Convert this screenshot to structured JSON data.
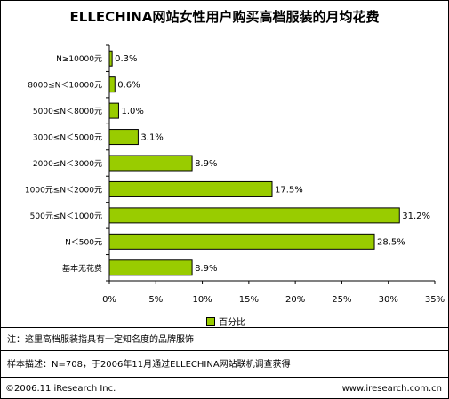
{
  "chart_data": {
    "type": "bar",
    "orientation": "horizontal",
    "title": "ELLECHINA网站女性用户购买高档服装的月均花费",
    "categories": [
      "N≥10000元",
      "8000≤N＜10000元",
      "5000≤N＜8000元",
      "3000≤N＜5000元",
      "2000≤N＜3000元",
      "1000元≤N＜2000元",
      "500元≤N＜1000元",
      "N＜500元",
      "基本无花费"
    ],
    "series": [
      {
        "name": "百分比",
        "values": [
          0.3,
          0.6,
          1.0,
          3.1,
          8.9,
          17.5,
          31.2,
          28.5,
          8.9
        ]
      }
    ],
    "value_labels": [
      "0.3%",
      "0.6%",
      "1.0%",
      "3.1%",
      "8.9%",
      "17.5%",
      "31.2%",
      "28.5%",
      "8.9%"
    ],
    "x_ticks": [
      0,
      5,
      10,
      15,
      20,
      25,
      30,
      35
    ],
    "x_tick_labels": [
      "0%",
      "5%",
      "10%",
      "15%",
      "20%",
      "25%",
      "30%",
      "35%"
    ],
    "xlim": [
      0,
      35
    ],
    "grid": false,
    "legend_position": "bottom",
    "colors": {
      "bar": "#99cc00",
      "bar_border": "#000000"
    }
  },
  "notes": {
    "note": "注：这里高档服装指具有一定知名度的品牌服饰",
    "sample": "样本描述：N=708，于2006年11月通过ELLECHINA网站联机调查获得"
  },
  "footer": {
    "copyright": "©2006.11 iResearch Inc.",
    "website": "www.iresearch.com.cn"
  }
}
